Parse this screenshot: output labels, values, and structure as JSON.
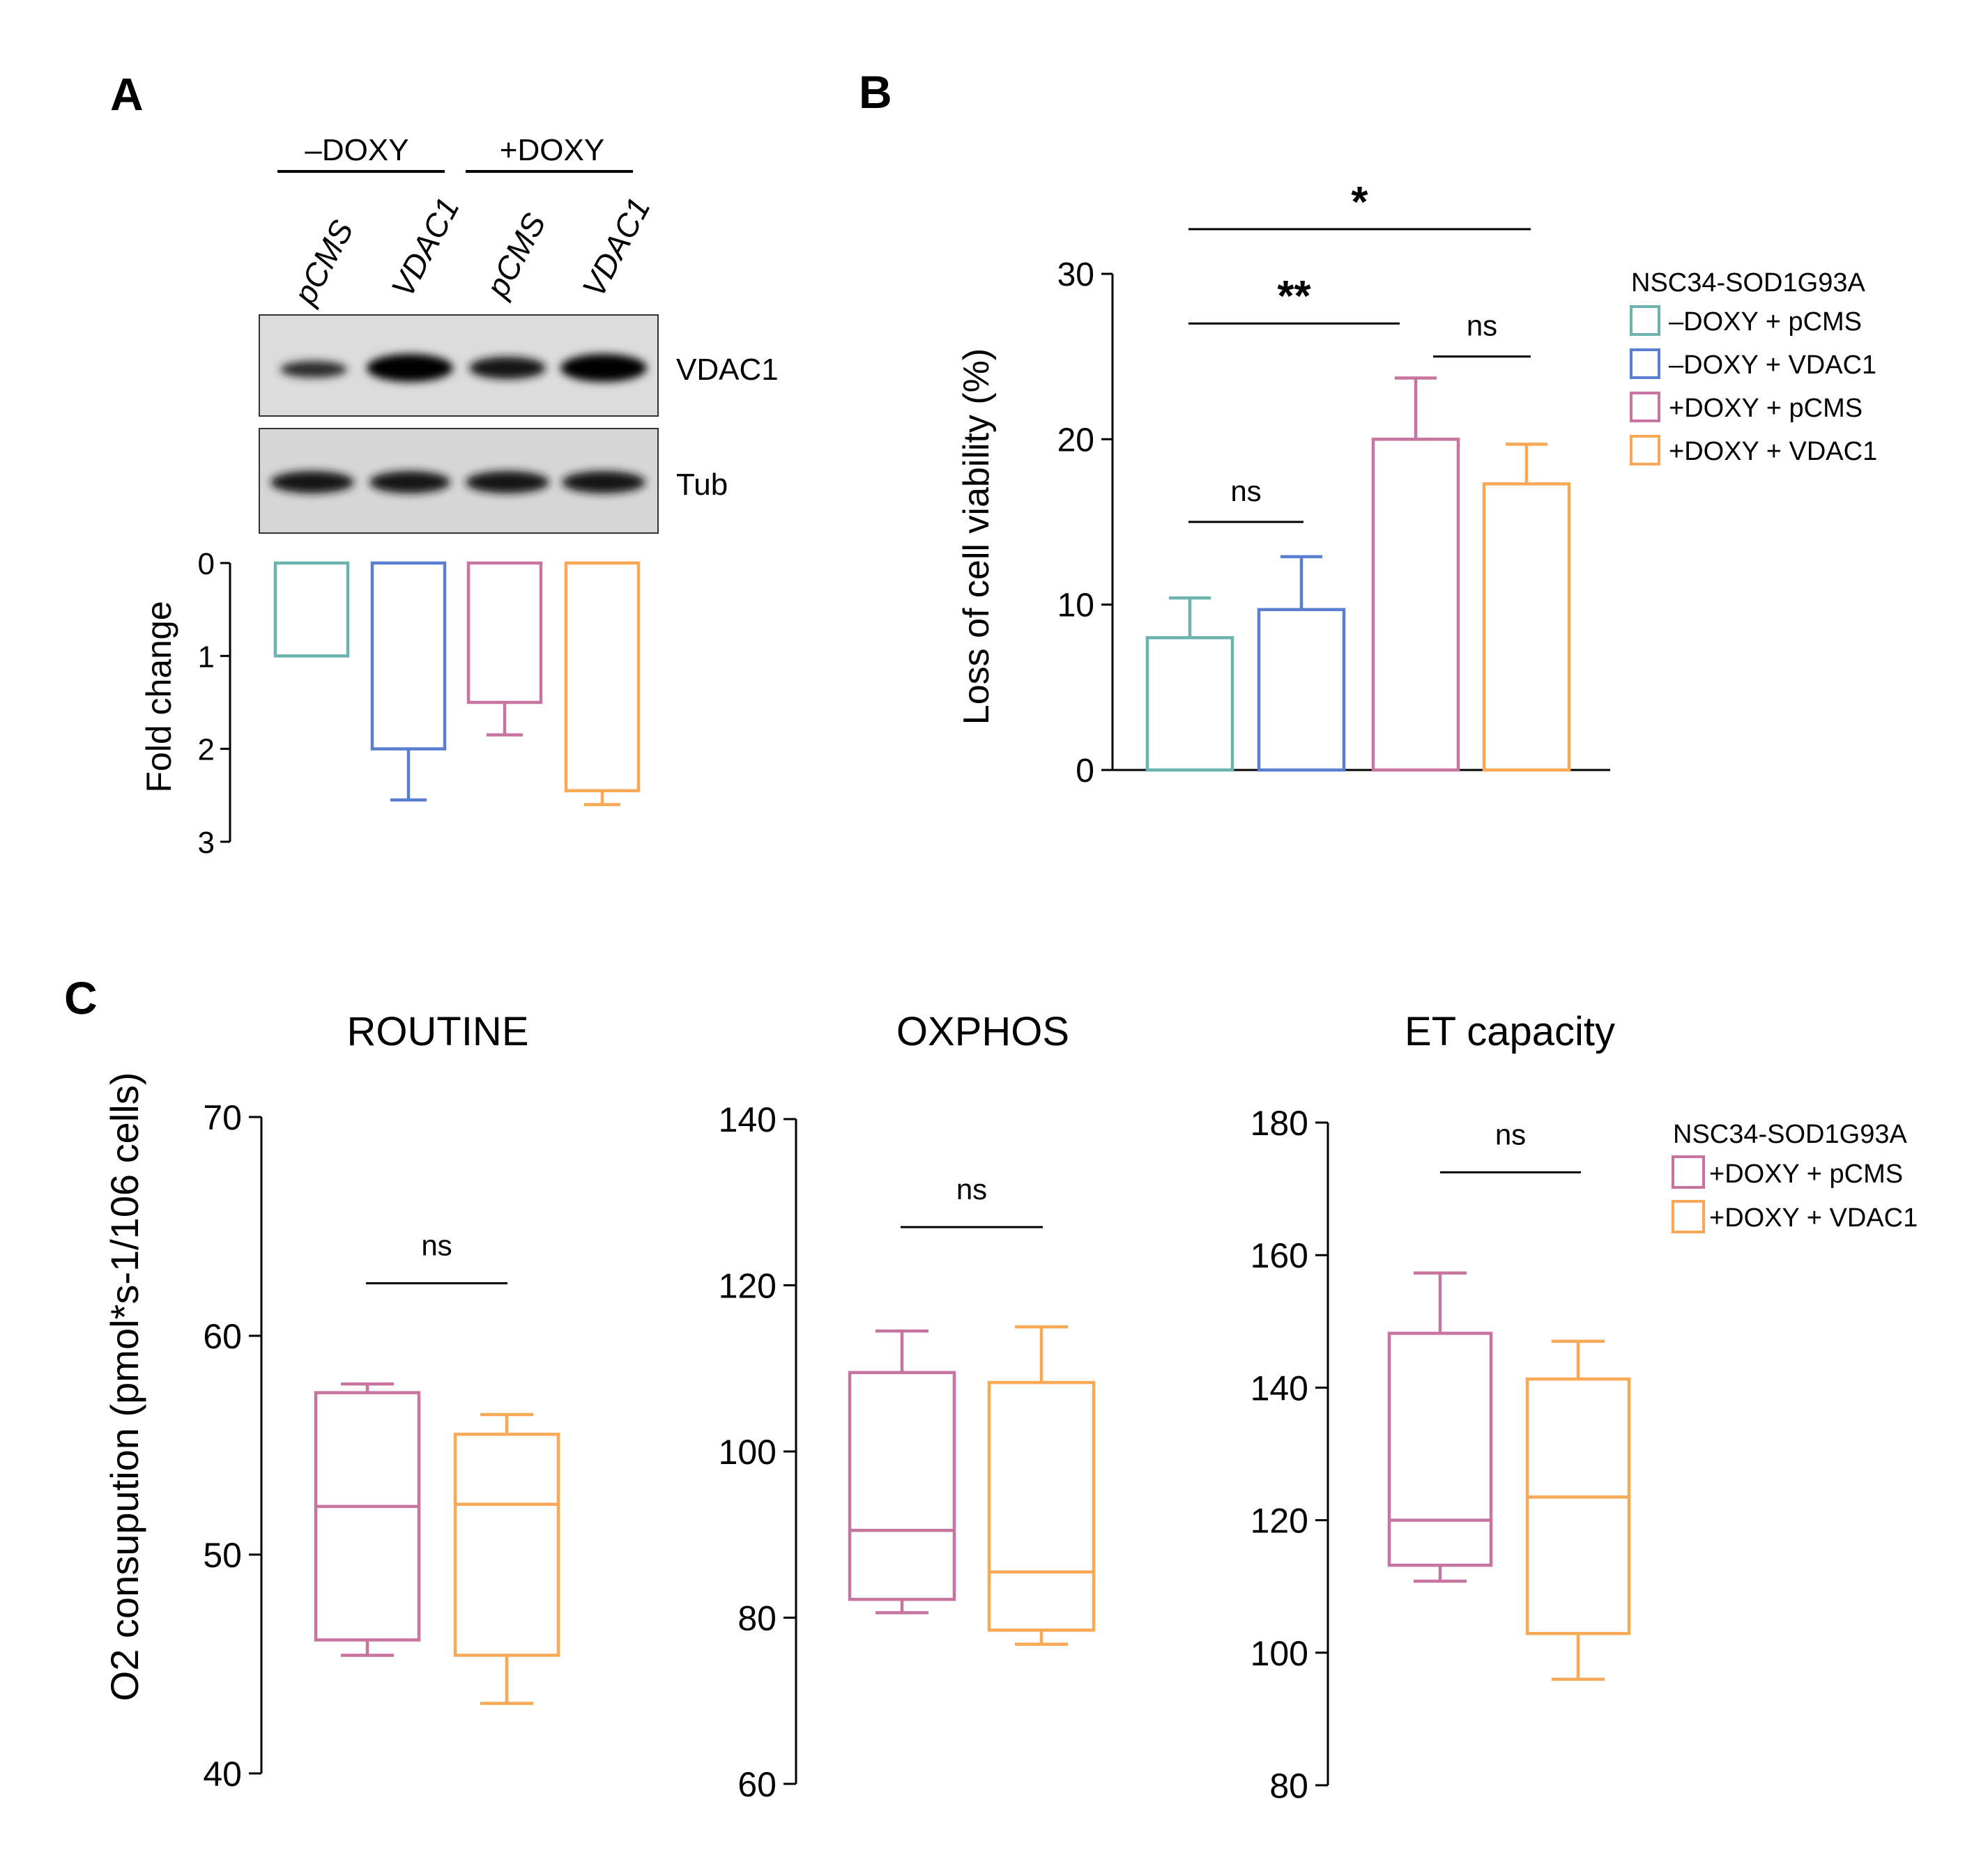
{
  "colors": {
    "teal": "#6AB3AE",
    "blue": "#5B7FD0",
    "pink": "#C874A0",
    "orange": "#F9A855",
    "axis": "#000000"
  },
  "panel_labels": {
    "a": "A",
    "b": "B",
    "c": "C"
  },
  "blot": {
    "group_minus": "–DOXY",
    "group_plus": "+DOXY",
    "lanes": [
      "pCMS",
      "VDAC1",
      "pCMS",
      "VDAC1"
    ],
    "band_labels": [
      "VDAC1",
      "Tub"
    ]
  },
  "chart_data": [
    {
      "id": "A",
      "type": "bar",
      "orientation": "inverted-vertical",
      "ylabel": "Fold change",
      "ylim": [
        0,
        3
      ],
      "yticks": [
        "0",
        "1",
        "2",
        "3"
      ],
      "categories": [
        "–DOXY + pCMS",
        "–DOXY + VDAC1",
        "+DOXY + pCMS",
        "+DOXY + VDAC1"
      ],
      "values": [
        1.0,
        2.0,
        1.5,
        2.45
      ],
      "errors": [
        0,
        0.55,
        0.35,
        0.15
      ],
      "colors": [
        "#6AB3AE",
        "#5B7FD0",
        "#C874A0",
        "#F9A855"
      ]
    },
    {
      "id": "B",
      "type": "bar",
      "ylabel": "Loss of cell viability (%)",
      "ylim": [
        0,
        30
      ],
      "yticks": [
        "0",
        "10",
        "20",
        "30"
      ],
      "categories": [
        "–DOXY + pCMS",
        "–DOXY + VDAC1",
        "+DOXY + pCMS",
        "+DOXY + VDAC1"
      ],
      "values": [
        8.0,
        9.7,
        20.0,
        17.3
      ],
      "errors": [
        2.4,
        3.2,
        3.7,
        2.4
      ],
      "colors": [
        "#6AB3AE",
        "#5B7FD0",
        "#C874A0",
        "#F9A855"
      ],
      "significance": [
        {
          "from": 0,
          "to": 1,
          "level": 15.0,
          "label": "ns"
        },
        {
          "from": 0,
          "to": 2,
          "level": 27.0,
          "label": "**"
        },
        {
          "from": 2,
          "to": 3,
          "level": 25.0,
          "label": "ns"
        },
        {
          "from": 0,
          "to": 3,
          "level": 32.7,
          "label": "*"
        }
      ],
      "legend": {
        "title": "NSC34-SOD1G93A",
        "entries": [
          "–DOXY + pCMS",
          "–DOXY + VDAC1",
          "+DOXY + pCMS",
          "+DOXY + VDAC1"
        ],
        "position": "right"
      }
    },
    {
      "id": "C1",
      "type": "box",
      "title": "ROUTINE",
      "ylabel": "O2 consupution (pmol*s-1/106 cells)",
      "ylim": [
        40,
        70
      ],
      "yticks": [
        "40",
        "50",
        "60",
        "70"
      ],
      "series": [
        {
          "name": "+DOXY + pCMS",
          "whisker_low": 45.4,
          "q1": 46.1,
          "median": 52.2,
          "q3": 57.4,
          "whisker_high": 57.8
        },
        {
          "name": "+DOXY + VDAC1",
          "whisker_low": 43.2,
          "q1": 45.4,
          "median": 52.3,
          "q3": 55.5,
          "whisker_high": 56.4
        }
      ],
      "significance": {
        "label": "ns",
        "level": 62.4
      }
    },
    {
      "id": "C2",
      "type": "box",
      "title": "OXPHOS",
      "ylim": [
        60,
        140
      ],
      "yticks": [
        "60",
        "80",
        "100",
        "120",
        "140"
      ],
      "series": [
        {
          "name": "+DOXY + pCMS",
          "whisker_low": 80.6,
          "q1": 82.2,
          "median": 90.5,
          "q3": 109.5,
          "whisker_high": 114.5
        },
        {
          "name": "+DOXY + VDAC1",
          "whisker_low": 76.8,
          "q1": 78.5,
          "median": 85.5,
          "q3": 108.3,
          "whisker_high": 115.0
        }
      ],
      "significance": {
        "label": "ns",
        "level": 127.0
      }
    },
    {
      "id": "C3",
      "type": "box",
      "title": "ET capacity",
      "ylim": [
        80,
        180
      ],
      "yticks": [
        "80",
        "100",
        "120",
        "140",
        "160",
        "180"
      ],
      "series": [
        {
          "name": "+DOXY + pCMS",
          "whisker_low": 110.8,
          "q1": 113.2,
          "median": 120.0,
          "q3": 148.2,
          "whisker_high": 157.3
        },
        {
          "name": "+DOXY + VDAC1",
          "whisker_low": 96.0,
          "q1": 102.9,
          "median": 123.5,
          "q3": 141.3,
          "whisker_high": 147.0
        }
      ],
      "significance": {
        "label": "ns",
        "level": 172.5
      },
      "legend": {
        "title": "NSC34-SOD1G93A",
        "entries": [
          "+DOXY + pCMS",
          "+DOXY + VDAC1"
        ],
        "position": "right"
      }
    }
  ]
}
